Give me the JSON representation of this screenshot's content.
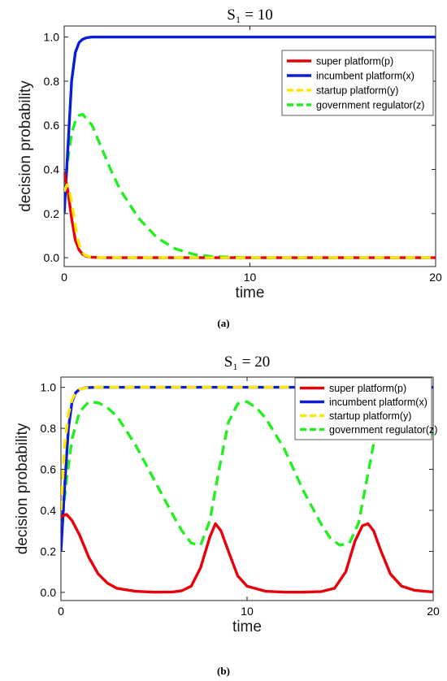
{
  "captions": [
    "(a)",
    "(b)"
  ],
  "chart_data": [
    {
      "type": "line",
      "title": "S₁ = 10",
      "xlabel": "time",
      "ylabel": "decision probability",
      "xlim": [
        0,
        20
      ],
      "ylim": [
        -0.04,
        1.05
      ],
      "xticks": [
        "0",
        "10",
        "20"
      ],
      "yticks": [
        "0.0",
        "0.2",
        "0.4",
        "0.6",
        "0.8",
        "1.0"
      ],
      "legend_position": "top-right",
      "series": [
        {
          "name": "super platform(p)",
          "color": "#e8000b",
          "style": "solid",
          "x": [
            0,
            0.2,
            0.4,
            0.6,
            0.8,
            1.0,
            1.2,
            1.5,
            2,
            3,
            5,
            10,
            15,
            20
          ],
          "y": [
            0.39,
            0.3,
            0.18,
            0.08,
            0.035,
            0.015,
            0.006,
            0.002,
            0,
            0,
            0,
            0,
            0,
            0
          ]
        },
        {
          "name": "incumbent platform(x)",
          "color": "#0a1ed8",
          "style": "solid",
          "x": [
            0,
            0.2,
            0.4,
            0.6,
            0.8,
            1.0,
            1.2,
            1.5,
            2,
            5,
            10,
            15,
            20
          ],
          "y": [
            0.2,
            0.5,
            0.8,
            0.93,
            0.975,
            0.99,
            0.997,
            1.0,
            1.0,
            1.0,
            1.0,
            1.0,
            1.0
          ]
        },
        {
          "name": "startup platform(y)",
          "color": "#ffe600",
          "style": "dashed",
          "x": [
            0,
            0.15,
            0.3,
            0.5,
            0.7,
            0.9,
            1.1,
            1.4,
            2,
            3,
            5,
            10,
            15,
            20
          ],
          "y": [
            0.3,
            0.33,
            0.3,
            0.2,
            0.09,
            0.035,
            0.012,
            0.004,
            0,
            0,
            0,
            0,
            0,
            0
          ]
        },
        {
          "name": "government regulator(z)",
          "color": "#22ee22",
          "style": "dashed",
          "x": [
            0,
            0.2,
            0.4,
            0.6,
            0.8,
            1.0,
            1.5,
            2,
            2.5,
            3,
            4,
            5,
            6,
            7,
            8,
            10,
            15,
            20
          ],
          "y": [
            0.3,
            0.45,
            0.56,
            0.62,
            0.645,
            0.65,
            0.6,
            0.5,
            0.4,
            0.31,
            0.18,
            0.09,
            0.04,
            0.015,
            0.005,
            0,
            0,
            0
          ]
        }
      ]
    },
    {
      "type": "line",
      "title": "S₁ = 20",
      "xlabel": "time",
      "ylabel": "decision probability",
      "xlim": [
        0,
        20
      ],
      "ylim": [
        -0.04,
        1.05
      ],
      "xticks": [
        "0",
        "10",
        "20"
      ],
      "yticks": [
        "0.0",
        "0.2",
        "0.4",
        "0.6",
        "0.8",
        "1.0"
      ],
      "legend_position": "top-right",
      "series": [
        {
          "name": "super platform(p)",
          "color": "#e8000b",
          "style": "solid",
          "x": [
            0,
            0.3,
            0.6,
            1,
            1.5,
            2,
            2.5,
            3,
            4,
            5,
            6,
            6.5,
            7,
            7.5,
            8,
            8.3,
            8.6,
            9,
            9.5,
            10,
            11,
            12,
            13,
            14,
            14.7,
            15.3,
            15.8,
            16.2,
            16.5,
            16.8,
            17.2,
            17.7,
            18.3,
            19,
            20
          ],
          "y": [
            0.37,
            0.38,
            0.35,
            0.28,
            0.17,
            0.09,
            0.045,
            0.02,
            0.005,
            0.001,
            0.002,
            0.008,
            0.03,
            0.12,
            0.27,
            0.335,
            0.3,
            0.2,
            0.08,
            0.03,
            0.005,
            0.001,
            0.001,
            0.004,
            0.02,
            0.1,
            0.25,
            0.325,
            0.335,
            0.3,
            0.2,
            0.09,
            0.03,
            0.01,
            0.002
          ]
        },
        {
          "name": "incumbent platform(x)",
          "color": "#0a1ed8",
          "style": "solid",
          "x": [
            0,
            0.2,
            0.4,
            0.6,
            0.8,
            1.0,
            1.3,
            2,
            5,
            10,
            15,
            20
          ],
          "y": [
            0.2,
            0.52,
            0.8,
            0.93,
            0.975,
            0.99,
            0.998,
            1.0,
            1.0,
            1.0,
            1.0,
            1.0
          ]
        },
        {
          "name": "startup platform(y)",
          "color": "#ffe600",
          "style": "dashed",
          "x": [
            0,
            0.2,
            0.4,
            0.6,
            0.8,
            1.0,
            1.3,
            2,
            5,
            10,
            15,
            20
          ],
          "y": [
            0.4,
            0.72,
            0.87,
            0.94,
            0.975,
            0.99,
            0.997,
            1.0,
            1.0,
            1.0,
            1.0,
            1.0
          ]
        },
        {
          "name": "government regulator(z)",
          "color": "#22ee22",
          "style": "dashed",
          "x": [
            0,
            0.3,
            0.6,
            1.0,
            1.5,
            2.0,
            2.5,
            3,
            4,
            5,
            6,
            6.5,
            7,
            7.5,
            8,
            8.5,
            9,
            9.5,
            10,
            10.5,
            11,
            12,
            13,
            14,
            14.5,
            15,
            15.5,
            16,
            16.5,
            17,
            17.5,
            18,
            19,
            20
          ],
          "y": [
            0.3,
            0.55,
            0.75,
            0.88,
            0.93,
            0.925,
            0.9,
            0.86,
            0.72,
            0.55,
            0.38,
            0.3,
            0.24,
            0.23,
            0.35,
            0.6,
            0.83,
            0.92,
            0.93,
            0.9,
            0.85,
            0.7,
            0.5,
            0.33,
            0.26,
            0.23,
            0.24,
            0.34,
            0.58,
            0.82,
            0.92,
            0.93,
            0.87,
            0.77
          ]
        }
      ]
    }
  ]
}
